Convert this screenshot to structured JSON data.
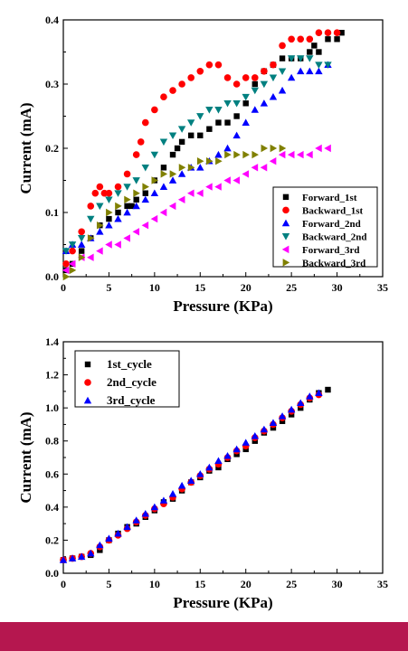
{
  "theme": {
    "footer_color": "#b5174f"
  },
  "chart_data": [
    {
      "type": "scatter",
      "title": "",
      "xlabel": "Pressure (KPa)",
      "ylabel": "Current (mA)",
      "xlim": [
        0,
        35
      ],
      "ylim": [
        0,
        0.4
      ],
      "xticks": [
        "0",
        "5",
        "10",
        "15",
        "20",
        "25",
        "30",
        "35"
      ],
      "yticks": [
        "0.0",
        "0.1",
        "0.2",
        "0.3",
        "0.4"
      ],
      "grid": false,
      "legend_position": "bottom-right",
      "series": [
        {
          "name": "Forward_1st",
          "color": "#000000",
          "marker": "square",
          "x": [
            0.3,
            1,
            2,
            3,
            4,
            5,
            6,
            7,
            7.5,
            8,
            9,
            10,
            11,
            12,
            12.5,
            13,
            14,
            15,
            16,
            17,
            18,
            19,
            20,
            21,
            22,
            23,
            24,
            25,
            26,
            27,
            27.5,
            28,
            29,
            30,
            30.5
          ],
          "y": [
            0.01,
            0.02,
            0.04,
            0.06,
            0.08,
            0.09,
            0.1,
            0.11,
            0.11,
            0.12,
            0.13,
            0.15,
            0.17,
            0.19,
            0.2,
            0.21,
            0.22,
            0.22,
            0.23,
            0.24,
            0.24,
            0.25,
            0.27,
            0.3,
            0.32,
            0.33,
            0.34,
            0.34,
            0.34,
            0.35,
            0.36,
            0.35,
            0.37,
            0.37,
            0.38
          ]
        },
        {
          "name": "Backward_1st",
          "color": "#ff0000",
          "marker": "circle",
          "x": [
            0.3,
            1,
            2,
            3,
            3.5,
            4,
            4.5,
            5,
            6,
            7,
            8,
            8.5,
            9,
            10,
            11,
            12,
            13,
            14,
            15,
            16,
            17,
            18,
            19,
            20,
            21,
            22,
            23,
            24,
            25,
            26,
            27,
            28,
            29,
            30
          ],
          "y": [
            0.02,
            0.04,
            0.07,
            0.11,
            0.13,
            0.14,
            0.13,
            0.13,
            0.14,
            0.16,
            0.19,
            0.21,
            0.24,
            0.26,
            0.28,
            0.29,
            0.3,
            0.31,
            0.32,
            0.33,
            0.33,
            0.31,
            0.3,
            0.31,
            0.31,
            0.32,
            0.33,
            0.36,
            0.37,
            0.37,
            0.37,
            0.38,
            0.38,
            0.38
          ]
        },
        {
          "name": "Forward_2nd",
          "color": "#0000ff",
          "marker": "triangle-up",
          "x": [
            0.3,
            1,
            2,
            3,
            4,
            5,
            6,
            7,
            8,
            9,
            10,
            11,
            12,
            13,
            14,
            15,
            16,
            17,
            18,
            19,
            20,
            21,
            22,
            23,
            24,
            25,
            26,
            27,
            28,
            29
          ],
          "y": [
            0.04,
            0.05,
            0.05,
            0.06,
            0.07,
            0.08,
            0.09,
            0.1,
            0.11,
            0.12,
            0.13,
            0.14,
            0.15,
            0.16,
            0.17,
            0.17,
            0.18,
            0.19,
            0.2,
            0.22,
            0.24,
            0.26,
            0.27,
            0.28,
            0.29,
            0.31,
            0.32,
            0.32,
            0.32,
            0.33
          ]
        },
        {
          "name": "Backward_2nd",
          "color": "#008080",
          "marker": "triangle-down",
          "x": [
            0.3,
            1,
            2,
            3,
            4,
            5,
            6,
            7,
            8,
            9,
            10,
            11,
            12,
            13,
            14,
            15,
            16,
            17,
            18,
            19,
            20,
            21,
            22,
            23,
            24,
            25,
            26,
            27,
            28,
            29
          ],
          "y": [
            0.04,
            0.05,
            0.06,
            0.09,
            0.11,
            0.12,
            0.13,
            0.14,
            0.15,
            0.17,
            0.19,
            0.21,
            0.22,
            0.23,
            0.24,
            0.25,
            0.26,
            0.26,
            0.27,
            0.27,
            0.28,
            0.29,
            0.3,
            0.31,
            0.32,
            0.34,
            0.34,
            0.34,
            0.33,
            0.33
          ]
        },
        {
          "name": "Forward_3rd",
          "color": "#ff00ff",
          "marker": "triangle-left",
          "x": [
            0.3,
            1,
            2,
            3,
            4,
            5,
            6,
            7,
            8,
            9,
            10,
            11,
            12,
            13,
            14,
            15,
            16,
            17,
            18,
            19,
            20,
            21,
            22,
            23,
            24,
            25,
            26,
            27,
            28,
            29
          ],
          "y": [
            0.01,
            0.02,
            0.03,
            0.03,
            0.04,
            0.05,
            0.05,
            0.06,
            0.07,
            0.08,
            0.09,
            0.1,
            0.11,
            0.12,
            0.13,
            0.13,
            0.14,
            0.14,
            0.15,
            0.15,
            0.16,
            0.17,
            0.17,
            0.18,
            0.19,
            0.19,
            0.19,
            0.19,
            0.2,
            0.2
          ]
        },
        {
          "name": "Backward_3rd",
          "color": "#808000",
          "marker": "triangle-right",
          "x": [
            0.3,
            1,
            2,
            3,
            4,
            5,
            6,
            7,
            8,
            9,
            10,
            11,
            12,
            13,
            14,
            15,
            16,
            17,
            18,
            19,
            20,
            21,
            22,
            23,
            24
          ],
          "y": [
            0.0,
            0.01,
            0.03,
            0.06,
            0.08,
            0.1,
            0.11,
            0.12,
            0.13,
            0.14,
            0.15,
            0.16,
            0.16,
            0.17,
            0.17,
            0.18,
            0.18,
            0.18,
            0.19,
            0.19,
            0.19,
            0.19,
            0.2,
            0.2,
            0.2
          ]
        }
      ]
    },
    {
      "type": "scatter",
      "title": "",
      "xlabel": "Pressure (KPa)",
      "ylabel": "Current (mA)",
      "xlim": [
        0,
        35
      ],
      "ylim": [
        0,
        1.4
      ],
      "xticks": [
        "0",
        "5",
        "10",
        "15",
        "20",
        "25",
        "30",
        "35"
      ],
      "yticks": [
        "0.0",
        "0.2",
        "0.4",
        "0.6",
        "0.8",
        "1.0",
        "1.2",
        "1.4"
      ],
      "grid": false,
      "legend_position": "top-left",
      "series": [
        {
          "name": "1st_cycle",
          "color": "#000000",
          "marker": "square",
          "x": [
            0,
            1,
            2,
            3,
            4,
            5,
            6,
            7,
            8,
            9,
            10,
            11,
            12,
            13,
            14,
            15,
            16,
            17,
            18,
            19,
            20,
            21,
            22,
            23,
            24,
            25,
            26,
            27,
            28,
            29
          ],
          "y": [
            0.08,
            0.09,
            0.1,
            0.11,
            0.14,
            0.2,
            0.24,
            0.28,
            0.3,
            0.34,
            0.38,
            0.43,
            0.45,
            0.5,
            0.55,
            0.58,
            0.62,
            0.64,
            0.69,
            0.72,
            0.75,
            0.8,
            0.85,
            0.88,
            0.92,
            0.96,
            1.0,
            1.05,
            1.09,
            1.11
          ]
        },
        {
          "name": "2nd_cycle",
          "color": "#ff0000",
          "marker": "circle",
          "x": [
            0,
            1,
            2,
            3,
            4,
            5,
            6,
            7,
            8,
            9,
            10,
            11,
            12,
            13,
            14,
            15,
            16,
            17,
            18,
            19,
            20,
            21,
            22,
            23,
            24,
            25,
            26,
            27,
            28
          ],
          "y": [
            0.08,
            0.09,
            0.1,
            0.12,
            0.16,
            0.2,
            0.23,
            0.27,
            0.31,
            0.35,
            0.39,
            0.42,
            0.46,
            0.51,
            0.55,
            0.59,
            0.63,
            0.66,
            0.7,
            0.74,
            0.77,
            0.82,
            0.86,
            0.9,
            0.94,
            0.98,
            1.02,
            1.06,
            1.08
          ]
        },
        {
          "name": "3rd_cycle",
          "color": "#0000ff",
          "marker": "triangle-up",
          "x": [
            0,
            1,
            2,
            3,
            4,
            5,
            6,
            7,
            8,
            9,
            10,
            11,
            12,
            13,
            14,
            15,
            16,
            17,
            18,
            19,
            20,
            21,
            22,
            23,
            24,
            25,
            26,
            27,
            28
          ],
          "y": [
            0.08,
            0.09,
            0.1,
            0.12,
            0.17,
            0.21,
            0.24,
            0.28,
            0.32,
            0.36,
            0.4,
            0.44,
            0.48,
            0.53,
            0.56,
            0.6,
            0.64,
            0.68,
            0.71,
            0.75,
            0.79,
            0.83,
            0.87,
            0.91,
            0.95,
            0.99,
            1.03,
            1.07,
            1.09
          ]
        }
      ]
    }
  ]
}
